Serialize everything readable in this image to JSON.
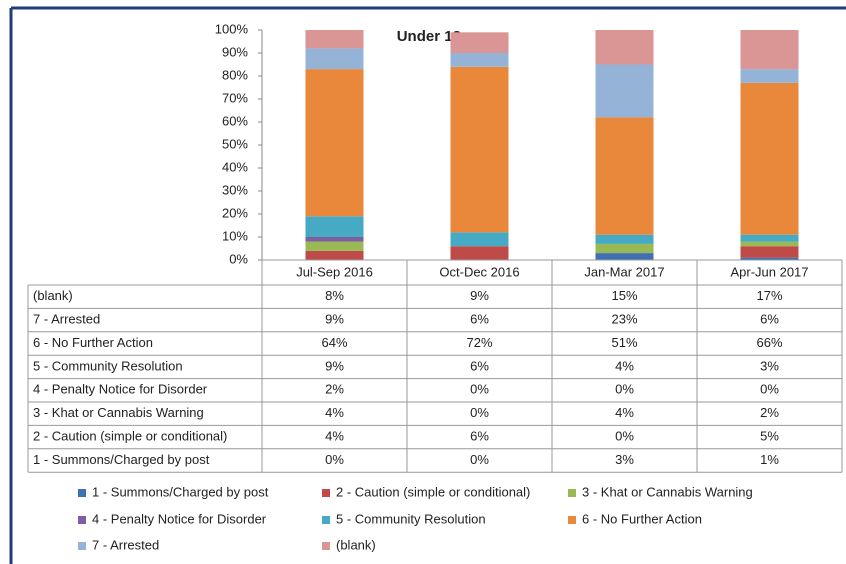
{
  "chart_data": {
    "type": "stacked_bar_100",
    "title": "Under 18s",
    "categories": [
      "Jul-Sep 2016",
      "Oct-Dec 2016",
      "Jan-Mar 2017",
      "Apr-Jun 2017"
    ],
    "ylim": [
      0,
      100
    ],
    "yticks": [
      {
        "value": 0,
        "label": "0%"
      },
      {
        "value": 10,
        "label": "10%"
      },
      {
        "value": 20,
        "label": "20%"
      },
      {
        "value": 30,
        "label": "30%"
      },
      {
        "value": 40,
        "label": "40%"
      },
      {
        "value": 50,
        "label": "50%"
      },
      {
        "value": 60,
        "label": "60%"
      },
      {
        "value": 70,
        "label": "70%"
      },
      {
        "value": 80,
        "label": "80%"
      },
      {
        "value": 90,
        "label": "90%"
      },
      {
        "value": 100,
        "label": "100%"
      }
    ],
    "series": [
      {
        "name": "1 - Summons/Charged by post",
        "color": "#3f6fb5",
        "values": [
          0,
          0,
          3,
          1
        ],
        "value_labels": [
          "0%",
          "0%",
          "3%",
          "1%"
        ]
      },
      {
        "name": "2 - Caution (simple or conditional)",
        "color": "#be4b48",
        "values": [
          4,
          6,
          0,
          5
        ],
        "value_labels": [
          "4%",
          "6%",
          "0%",
          "5%"
        ]
      },
      {
        "name": "3 - Khat or Cannabis Warning",
        "color": "#98b954",
        "values": [
          4,
          0,
          4,
          2
        ],
        "value_labels": [
          "4%",
          "0%",
          "4%",
          "2%"
        ]
      },
      {
        "name": "4 - Penalty Notice for Disorder",
        "color": "#7d60a0",
        "values": [
          2,
          0,
          0,
          0
        ],
        "value_labels": [
          "2%",
          "0%",
          "0%",
          "0%"
        ]
      },
      {
        "name": "5 - Community Resolution",
        "color": "#46aac5",
        "values": [
          9,
          6,
          4,
          3
        ],
        "value_labels": [
          "9%",
          "6%",
          "4%",
          "3%"
        ]
      },
      {
        "name": "6 - No Further Action",
        "color": "#e9883b",
        "values": [
          64,
          72,
          51,
          66
        ],
        "value_labels": [
          "64%",
          "72%",
          "51%",
          "66%"
        ]
      },
      {
        "name": "7 - Arrested",
        "color": "#95b3d7",
        "values": [
          9,
          6,
          23,
          6
        ],
        "value_labels": [
          "9%",
          "6%",
          "23%",
          "6%"
        ]
      },
      {
        "name": "(blank)",
        "color": "#d99694",
        "values": [
          8,
          9,
          15,
          17
        ],
        "value_labels": [
          "8%",
          "9%",
          "15%",
          "17%"
        ]
      }
    ]
  }
}
